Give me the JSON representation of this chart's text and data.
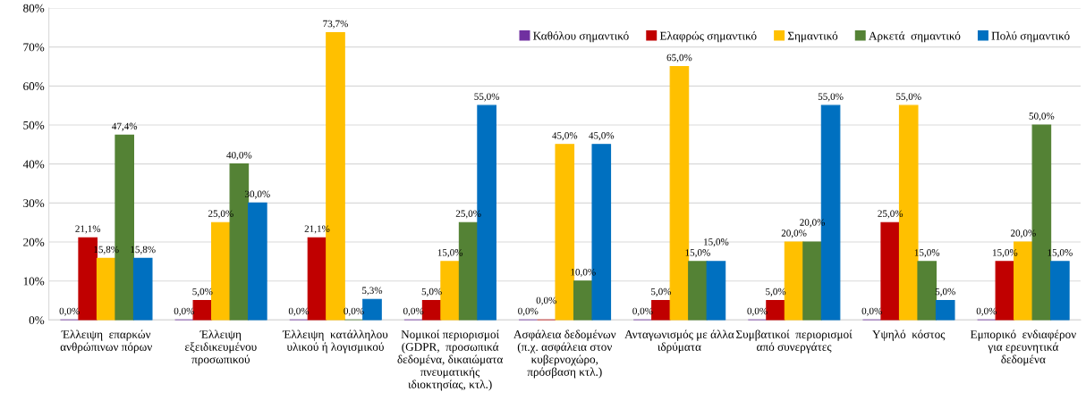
{
  "chart_data": {
    "type": "bar",
    "categories": [
      "Έλλειψη  επαρκών\nανθρώπινων πόρων",
      "Έλλειψη\nεξειδικευμένου\nπροσωπικού",
      "Έλλειψη  κατάλληλου\nυλικού ή λογισμικού",
      "Νομικοί περιορισμοί\n(GDPR,  προσωπικά\nδεδομένα, δικαιώματα\nπνευματικής\nιδιοκτησίας, κτλ.)",
      "Ασφάλεια δεδομένων\n(π.χ. ασφάλεια στον\nκυβερνοχώρο,\nπρόσβαση κτλ.)",
      "Ανταγωνισμός με άλλα\nιδρύματα",
      "Συμβατικοί  περιορισμοί\nαπό συνεργάτες",
      "Υψηλό  κόστος",
      "Εμπορικό  ενδιαφέρον\nγια ερευνητικά\nδεδομένα"
    ],
    "series": [
      {
        "name": "Καθόλου σημαντικό",
        "color": "#7030a0",
        "values": [
          0,
          0,
          0,
          0,
          0,
          0,
          0,
          0,
          0
        ],
        "value_labels": [
          "0,0%",
          "0,0%",
          "0,0%",
          "0,0%",
          "0,0%",
          "0,0%",
          "0,0%",
          "0,0%",
          "0,0%"
        ]
      },
      {
        "name": "Ελαφρώς σημαντικό",
        "color": "#c00000",
        "values": [
          21.1,
          5,
          21.1,
          5,
          0,
          5,
          5,
          25,
          15
        ],
        "value_labels": [
          "21,1%",
          "5,0%",
          "21,1%",
          "5,0%",
          "0,0%",
          "5,0%",
          "5,0%",
          "25,0%",
          "15,0%"
        ]
      },
      {
        "name": "Σημαντικό",
        "color": "#ffc000",
        "values": [
          15.8,
          25,
          73.7,
          15,
          45,
          65,
          20,
          55,
          20
        ],
        "value_labels": [
          "15,8%",
          "25,0%",
          "73,7%",
          "15,0%",
          "45,0%",
          "65,0%",
          "20,0%",
          "55,0%",
          "20,0%"
        ]
      },
      {
        "name": "Αρκετά  σημαντικό",
        "color": "#548235",
        "values": [
          47.4,
          40,
          0,
          25,
          10,
          15,
          20,
          15,
          50
        ],
        "value_labels": [
          "47,4%",
          "40,0%",
          "0,0%",
          "25,0%",
          "10,0%",
          "15,0%",
          "20,0%",
          "15,0%",
          "50,0%"
        ]
      },
      {
        "name": "Πολύ σημαντικό",
        "color": "#0070c0",
        "values": [
          15.8,
          30,
          5.3,
          55,
          45,
          15,
          55,
          5,
          15
        ],
        "value_labels": [
          "15,8%",
          "30,0%",
          "5,3%",
          "55,0%",
          "45,0%",
          "15,0%",
          "55,0%",
          "5,0%",
          "15,0%"
        ]
      }
    ],
    "ylim": [
      0,
      80
    ],
    "yticks": [
      {
        "value": 0,
        "label": "0%"
      },
      {
        "value": 10,
        "label": "10%"
      },
      {
        "value": 20,
        "label": "20%"
      },
      {
        "value": 30,
        "label": "30%"
      },
      {
        "value": 40,
        "label": "40%"
      },
      {
        "value": 50,
        "label": "50%"
      },
      {
        "value": 60,
        "label": "60%"
      },
      {
        "value": 70,
        "label": "70%"
      },
      {
        "value": 80,
        "label": "80%"
      }
    ],
    "grid": "y",
    "legend": "top right"
  }
}
